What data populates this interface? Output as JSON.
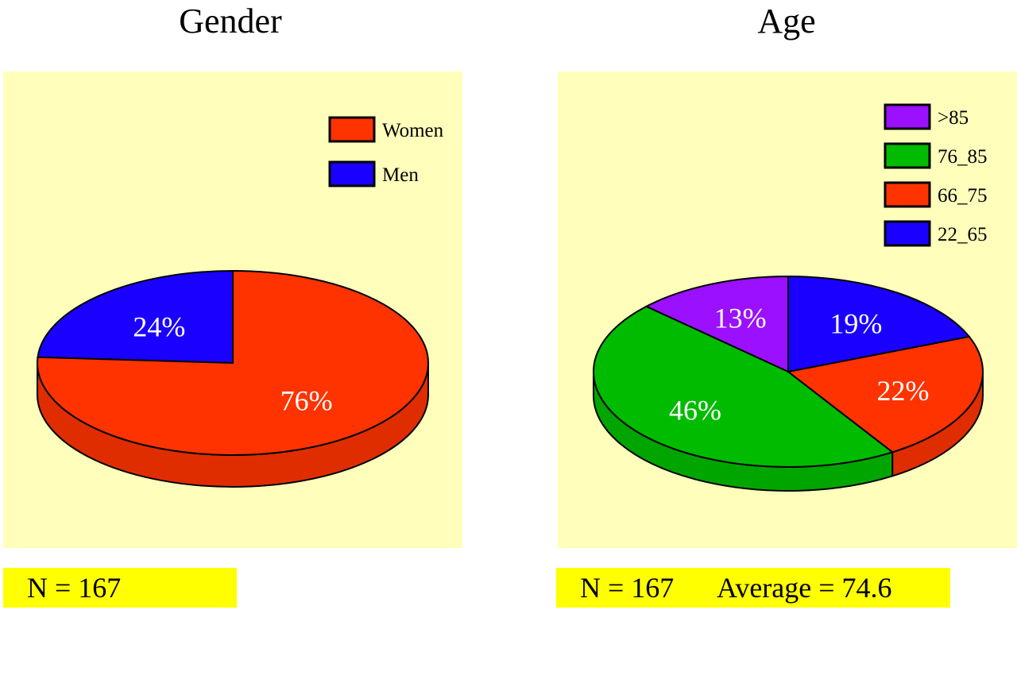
{
  "colors": {
    "panel_bg": "#ffffbb",
    "footer_bg": "#ffff00",
    "red": "#ff3300",
    "blue": "#1a00ff",
    "green": "#00bb00",
    "purple": "#9a10ff"
  },
  "chart_data": [
    {
      "type": "pie",
      "title": "Gender",
      "legend_position": "top-right",
      "slices": [
        {
          "label": "Women",
          "value": 76,
          "value_label": "76%",
          "color": "#ff3300"
        },
        {
          "label": "Men",
          "value": 24,
          "value_label": "24%",
          "color": "#1a00ff"
        }
      ],
      "footer": {
        "n": "N = 167"
      }
    },
    {
      "type": "pie",
      "title": "Age",
      "legend_position": "top-right",
      "slices": [
        {
          "label": ">85",
          "value": 13,
          "value_label": "13%",
          "color": "#9a10ff"
        },
        {
          "label": "76_85",
          "value": 46,
          "value_label": "46%",
          "color": "#00bb00"
        },
        {
          "label": "66_75",
          "value": 22,
          "value_label": "22%",
          "color": "#ff3300"
        },
        {
          "label": "22_65",
          "value": 19,
          "value_label": "19%",
          "color": "#1a00ff"
        }
      ],
      "footer": {
        "n": "N = 167",
        "average": "Average = 74.6"
      }
    }
  ]
}
